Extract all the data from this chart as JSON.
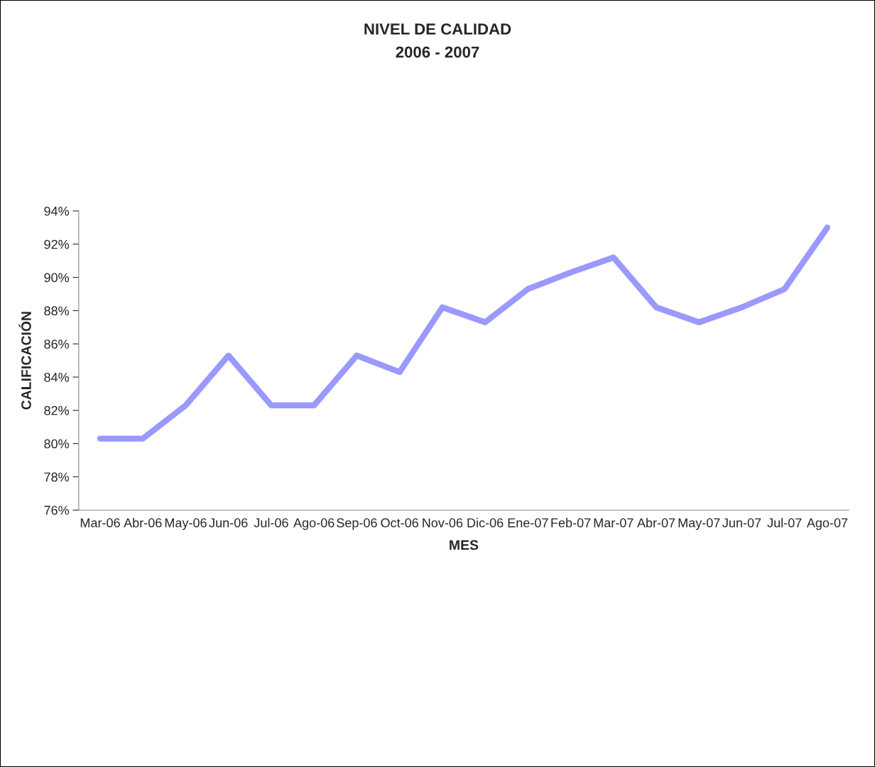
{
  "chart_data": {
    "type": "line",
    "title": "NIVEL DE CALIDAD",
    "subtitle": "2006 - 2007",
    "xlabel": "MES",
    "ylabel": "CALIFICACIÓN",
    "categories": [
      "Mar-06",
      "Abr-06",
      "May-06",
      "Jun-06",
      "Jul-06",
      "Ago-06",
      "Sep-06",
      "Oct-06",
      "Nov-06",
      "Dic-06",
      "Ene-07",
      "Feb-07",
      "Mar-07",
      "Abr-07",
      "May-07",
      "Jun-07",
      "Jul-07",
      "Ago-07"
    ],
    "series": [
      {
        "color": "#9999ff",
        "values": [
          80.3,
          80.3,
          82.3,
          85.3,
          82.3,
          82.3,
          85.3,
          84.3,
          88.2,
          87.3,
          89.3,
          90.3,
          91.2,
          88.2,
          87.3,
          88.2,
          89.3,
          93.0
        ]
      }
    ],
    "ylim": [
      76,
      94
    ],
    "yticks": [
      {
        "value": 76,
        "label": "76%"
      },
      {
        "value": 78,
        "label": "78%"
      },
      {
        "value": 80,
        "label": "80%"
      },
      {
        "value": 82,
        "label": "82%"
      },
      {
        "value": 84,
        "label": "84%"
      },
      {
        "value": 86,
        "label": "86%"
      },
      {
        "value": 88,
        "label": "88%"
      },
      {
        "value": 90,
        "label": "90%"
      },
      {
        "value": 92,
        "label": "92%"
      },
      {
        "value": 94,
        "label": "94%"
      }
    ],
    "grid": false,
    "legend": false,
    "marker": "none",
    "line_style": "solid"
  }
}
